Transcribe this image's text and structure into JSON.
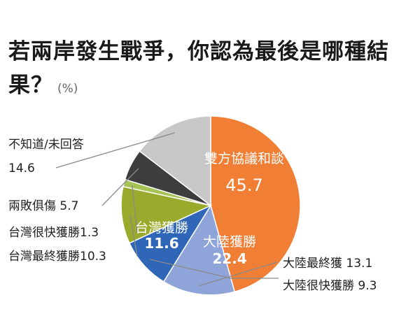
{
  "header": {
    "title": "若兩岸發生戰爭，你認為最後是哪種結果？",
    "unit": "(%)"
  },
  "chart_data": {
    "type": "pie",
    "title": "若兩岸發生戰爭，你認為最後是哪種結果？",
    "unit": "%",
    "slices": [
      {
        "label": "雙方協議和談",
        "value": 45.7,
        "color": "#f07f35"
      },
      {
        "label": "大陸最終獲",
        "value": 13.1,
        "color": "#8fa5da"
      },
      {
        "label": "大陸很快獲勝",
        "value": 9.3,
        "color": "#2f66b8"
      },
      {
        "label": "台灣最終獲勝",
        "value": 10.3,
        "color": "#9aaa2c"
      },
      {
        "label": "台灣很快獲勝",
        "value": 1.3,
        "color": "#a7c255"
      },
      {
        "label": "兩敗俱傷",
        "value": 5.7,
        "color": "#3d3d3d"
      },
      {
        "label": "不知道/未回答",
        "value": 14.6,
        "color": "#c8c8c8"
      }
    ],
    "group_labels": [
      {
        "label": "大陸獲勝",
        "value": 22.4
      },
      {
        "label": "台灣獲勝",
        "value": 11.6
      }
    ]
  }
}
